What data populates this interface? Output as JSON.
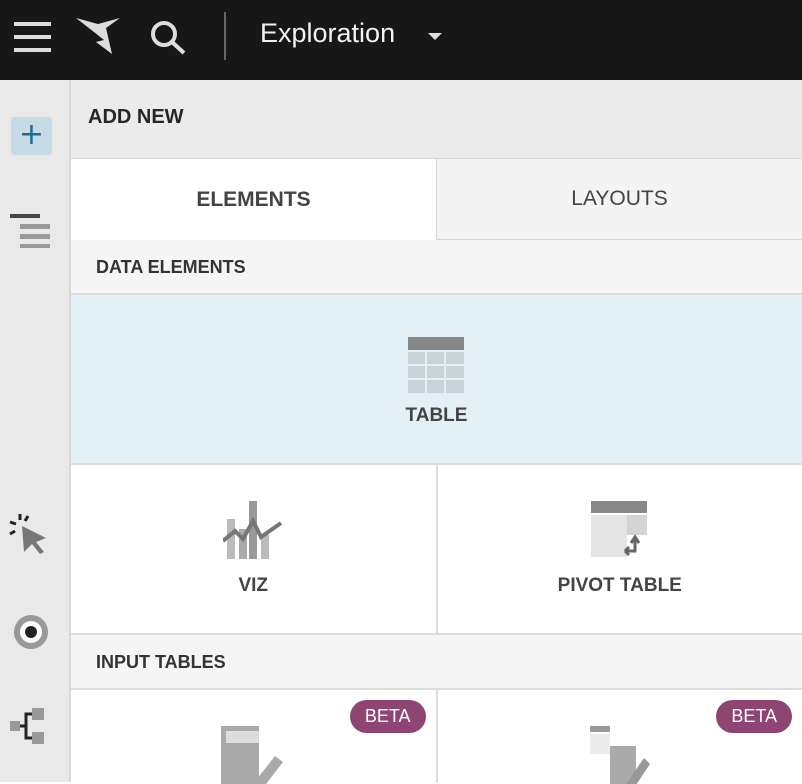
{
  "header": {
    "title": "Exploration"
  },
  "panel": {
    "title": "ADD NEW",
    "tabs": [
      {
        "label": "ELEMENTS",
        "active": true
      },
      {
        "label": "LAYOUTS",
        "active": false
      }
    ]
  },
  "sections": {
    "data_elements": "DATA ELEMENTS",
    "input_tables": "INPUT TABLES"
  },
  "elements": {
    "table": "TABLE",
    "viz": "VIZ",
    "pivot": "PIVOT TABLE"
  },
  "input_tables": {
    "badge1": "BETA",
    "badge2": "BETA"
  },
  "colors": {
    "topbar": "#171717",
    "hover": "#e3f1f7",
    "badge": "#8e4571",
    "add_button": "#c7dbe6"
  }
}
